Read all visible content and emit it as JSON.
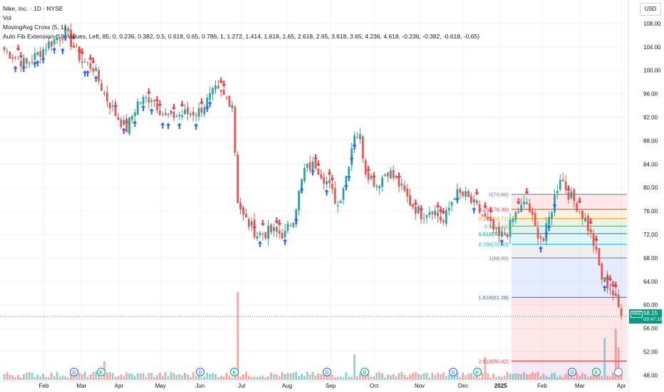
{
  "legend": {
    "title": "Nike, Inc. · 1D · NYSE",
    "vol": "Vol",
    "ma": "MovingAvg Cross (5, 1)",
    "fib": "Auto Fib Extension (10, Values, Left, 85, 0, 0.236, 0.382, 0.5, 0.618, 0.65, 0.786, 1, 1.272, 1.414, 1.618, 1.65, 2.618, 2.65, 3.618, 3.65, 4.236, 4.618, -0.236, -0.382, -0.618, -0.65)"
  },
  "currency": "USD",
  "last_price": {
    "symbol": "NKE",
    "value": "58.15",
    "countdown": "03:47:18"
  },
  "colors": {
    "up": "#26a69a",
    "down": "#ef5350",
    "buy_arrow": "#2962ff",
    "sell_arrow": "#f23645"
  },
  "event_markers": [
    {
      "label": "D",
      "month": "Mar"
    },
    {
      "label": "E",
      "month": "Mar"
    },
    {
      "label": "D",
      "month": "Jun"
    },
    {
      "label": "E",
      "month": "Jul"
    },
    {
      "label": "D",
      "month": "Sep"
    },
    {
      "label": "E",
      "month": "Oct"
    },
    {
      "label": "D",
      "month": "Dec"
    },
    {
      "label": "E",
      "month": "Dec"
    },
    {
      "label": "D",
      "month": "Mar"
    },
    {
      "label": "E",
      "month": "Mar"
    }
  ],
  "chart_data": {
    "type": "candlestick",
    "title": "Nike, Inc. · 1D · NYSE",
    "y_axis": {
      "ticks": [
        "108.00",
        "104.00",
        "100.00",
        "96.00",
        "92.00",
        "88.00",
        "84.00",
        "80.00",
        "76.00",
        "72.00",
        "68.00",
        "64.00",
        "60.00",
        "56.00",
        "52.00",
        "48.00"
      ],
      "range": [
        47.2,
        112
      ]
    },
    "x_axis": {
      "ticks": [
        "Feb",
        "Mar",
        "Apr",
        "May",
        "Jun",
        "Jul",
        "Aug",
        "Sep",
        "Oct",
        "Nov",
        "Dec",
        "2025",
        "Feb",
        "Mar",
        "Apr"
      ]
    },
    "close_anchors": [
      [
        0,
        103.5
      ],
      [
        8,
        101.0
      ],
      [
        16,
        104.5
      ],
      [
        22,
        106.5
      ],
      [
        28,
        101.5
      ],
      [
        32,
        100.5
      ],
      [
        36,
        96.0
      ],
      [
        40,
        92.5
      ],
      [
        44,
        90.0
      ],
      [
        48,
        94.5
      ],
      [
        53,
        95.5
      ],
      [
        58,
        92.0
      ],
      [
        64,
        92.5
      ],
      [
        70,
        93.0
      ],
      [
        76,
        96.5
      ],
      [
        82,
        94.5
      ],
      [
        84,
        78.0
      ],
      [
        86,
        75.0
      ],
      [
        91,
        72.0
      ],
      [
        96,
        72.5
      ],
      [
        101,
        72.0
      ],
      [
        104,
        75.0
      ],
      [
        108,
        83.0
      ],
      [
        112,
        84.0
      ],
      [
        116,
        81.0
      ],
      [
        120,
        77.0
      ],
      [
        123,
        82.0
      ],
      [
        126,
        89.5
      ],
      [
        128,
        88.5
      ],
      [
        130,
        83.0
      ],
      [
        134,
        80.5
      ],
      [
        138,
        83.0
      ],
      [
        142,
        80.5
      ],
      [
        146,
        77.5
      ],
      [
        150,
        75.5
      ],
      [
        154,
        76.5
      ],
      [
        158,
        74.0
      ],
      [
        162,
        79.0
      ],
      [
        166,
        78.5
      ],
      [
        170,
        76.5
      ],
      [
        174,
        74.0
      ],
      [
        178,
        71.5
      ],
      [
        181,
        72.5
      ],
      [
        184,
        75.5
      ],
      [
        188,
        77.5
      ],
      [
        191,
        73.0
      ],
      [
        194,
        71.0
      ],
      [
        197,
        76.5
      ],
      [
        200,
        82.0
      ],
      [
        203,
        79.0
      ],
      [
        206,
        77.0
      ],
      [
        209,
        74.5
      ],
      [
        212,
        70.5
      ],
      [
        215,
        64.5
      ],
      [
        218,
        63.0
      ],
      [
        221,
        59.5
      ],
      [
        222,
        58.15
      ]
    ],
    "volume": {
      "spikes": [
        {
          "index": 36,
          "value": 4.0
        },
        {
          "index": 84,
          "value": 19.0
        },
        {
          "index": 126,
          "value": 5.5
        },
        {
          "index": 173,
          "value": 5.0
        },
        {
          "index": 216,
          "value": 9.0
        },
        {
          "index": 220,
          "value": 11.0
        },
        {
          "index": 221,
          "value": 7.0
        }
      ],
      "typical": 1.0
    },
    "fibonacci": {
      "levels": [
        {
          "ratio": "0",
          "label": "0(78.86)",
          "price": 78.86,
          "color": "#787b86"
        },
        {
          "ratio": "0.236",
          "label": "0.236(76.30)",
          "price": 76.3,
          "color": "#f23645"
        },
        {
          "ratio": "0.382",
          "label": "0.382(74.71)",
          "price": 74.71,
          "color": "#ff9800"
        },
        {
          "ratio": "0.5",
          "label": "0.5(73.43)",
          "price": 73.43,
          "color": "#4caf50"
        },
        {
          "ratio": "0.618",
          "label": "0.618(72.15)",
          "price": 72.15,
          "color": "#089981"
        },
        {
          "ratio": "0.786",
          "label": "0.786(70.33)",
          "price": 70.33,
          "color": "#00bcd4"
        },
        {
          "ratio": "1",
          "label": "1(68.00)",
          "price": 68.0,
          "color": "#787b86"
        },
        {
          "ratio": "1.618",
          "label": "1.618(61.28)",
          "price": 61.28,
          "color": "#2962ff"
        },
        {
          "ratio": "2.618",
          "label": "2.618(50.42)",
          "price": 50.42,
          "color": "#f23645"
        }
      ]
    },
    "grid": true,
    "legend_position": "top-left"
  }
}
